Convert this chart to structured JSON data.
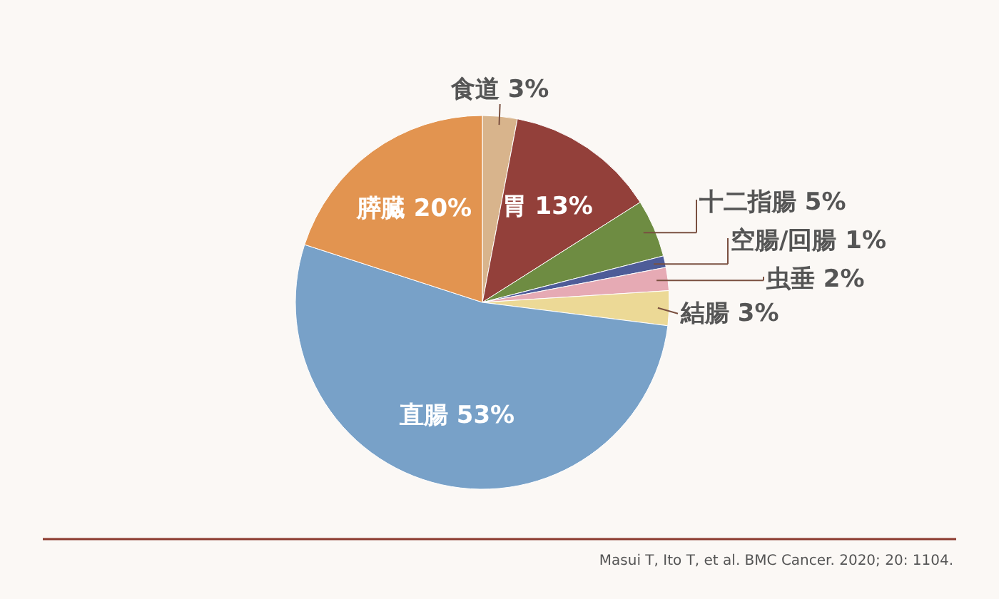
{
  "chart_data": {
    "type": "pie",
    "categories": [
      "食道",
      "胃",
      "十二指腸",
      "空腸/回腸",
      "虫垂",
      "結腸",
      "直腸",
      "膵臓"
    ],
    "values": [
      3,
      13,
      5,
      1,
      2,
      3,
      53,
      20
    ],
    "value_labels": [
      "3%",
      "13%",
      "5%",
      "1%",
      "2%",
      "3%",
      "53%",
      "20%"
    ],
    "colors": [
      "#d8b48c",
      "#93403a",
      "#6e8c42",
      "#4e5c98",
      "#e6aab4",
      "#ecd996",
      "#78a1c8",
      "#e29450"
    ],
    "annotations": [
      "Masui T, Ito T, et al. BMC Cancer. 2020; 20: 1104."
    ]
  }
}
